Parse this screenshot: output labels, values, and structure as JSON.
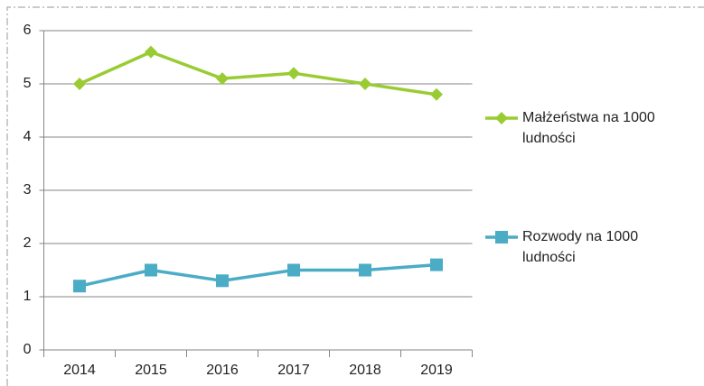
{
  "chart_data": {
    "type": "line",
    "categories": [
      "2014",
      "2015",
      "2016",
      "2017",
      "2018",
      "2019"
    ],
    "series": [
      {
        "name": "Małżeństwa na 1000 ludności",
        "color": "#99cc33",
        "marker": "diamond",
        "values": [
          5.0,
          5.6,
          5.1,
          5.2,
          5.0,
          4.8
        ]
      },
      {
        "name": "Rozwody na 1000 ludności",
        "color": "#4bacc6",
        "marker": "square",
        "values": [
          1.2,
          1.5,
          1.3,
          1.5,
          1.5,
          1.6
        ]
      }
    ],
    "ylim": [
      0,
      6
    ],
    "yticks": [
      0,
      1,
      2,
      3,
      4,
      5,
      6
    ],
    "grid": true,
    "legend": "right"
  }
}
